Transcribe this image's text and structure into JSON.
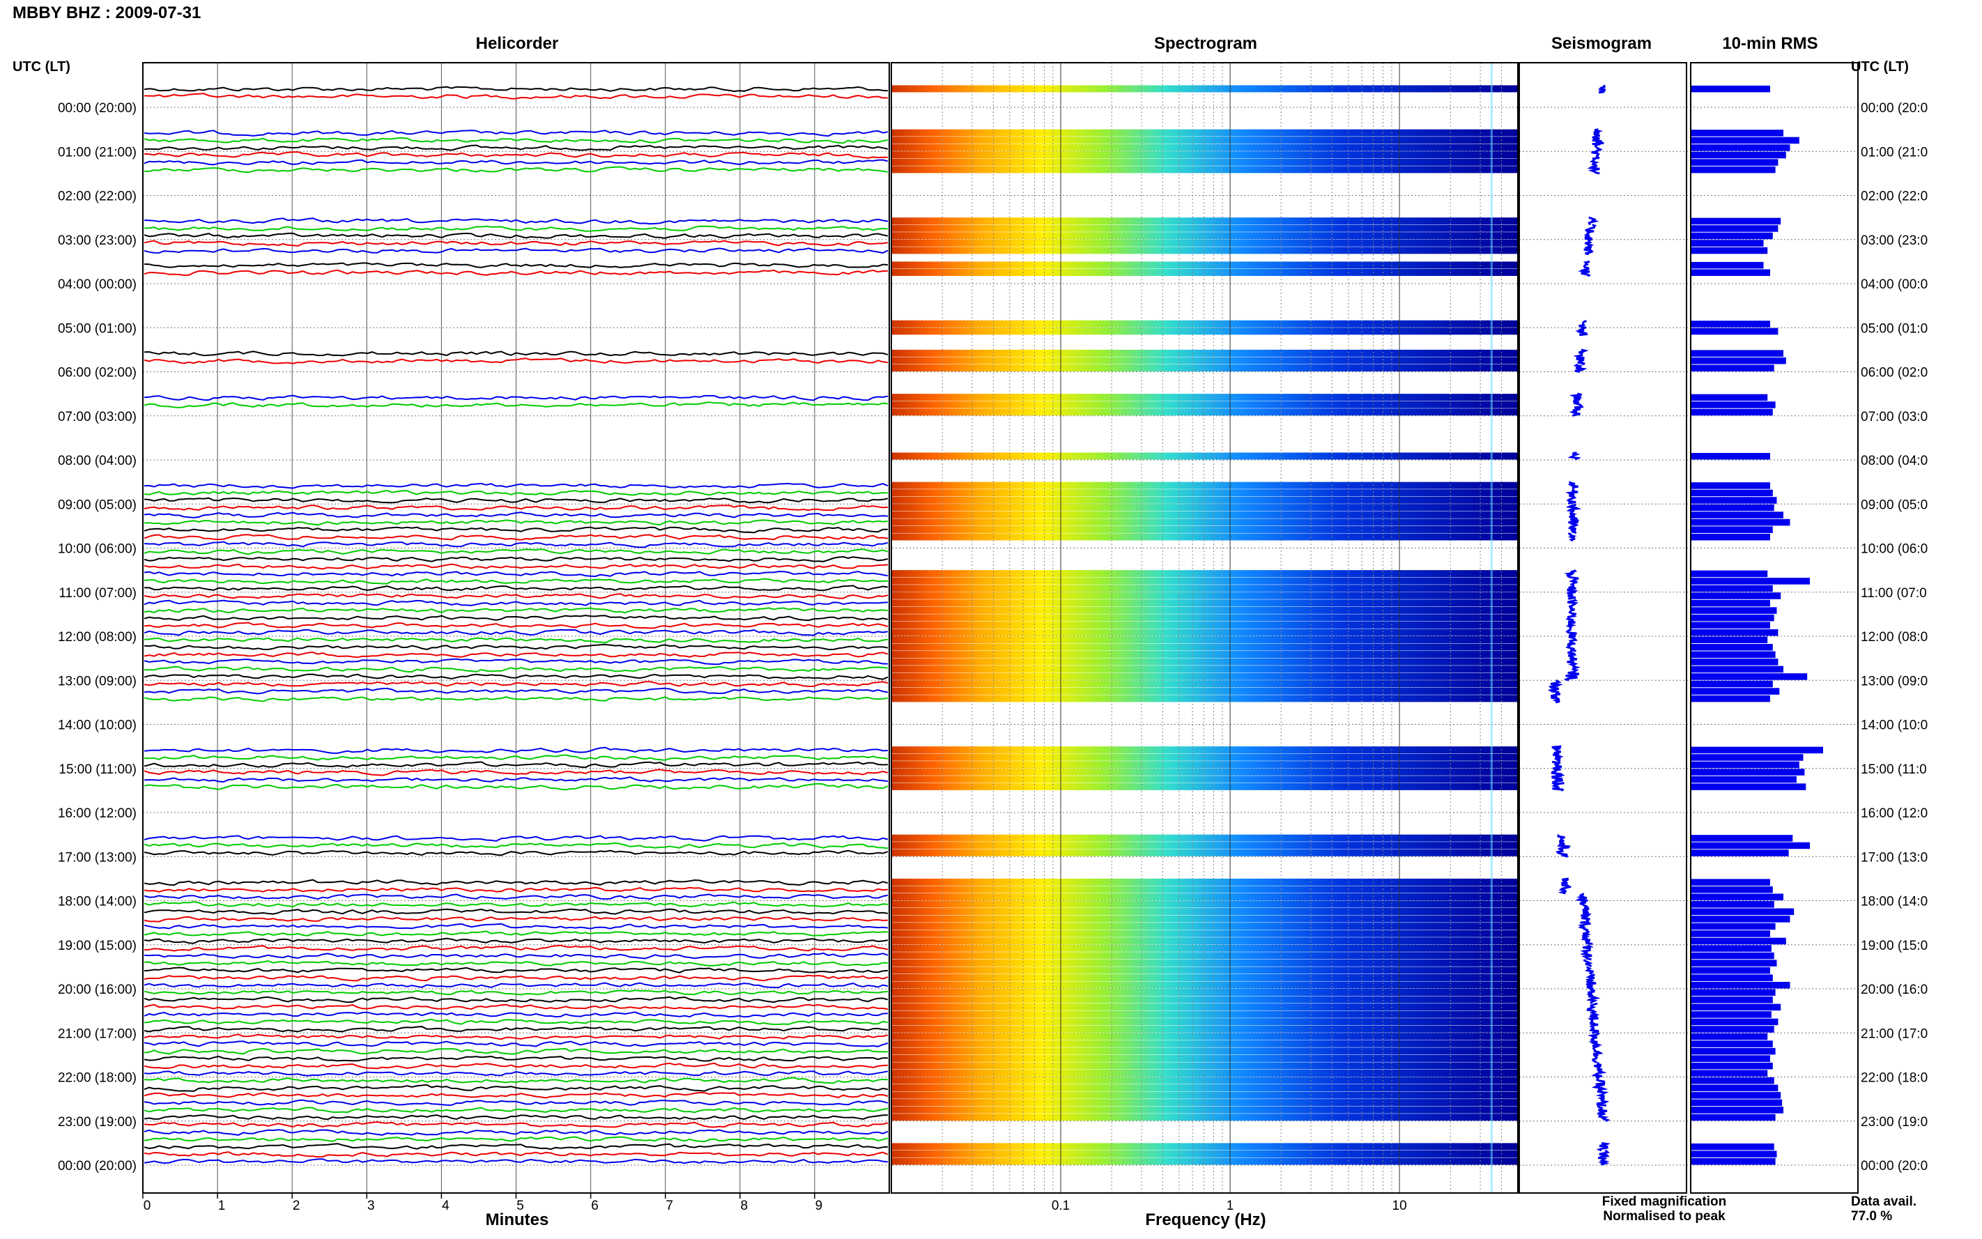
{
  "header": {
    "title": "MBBY BHZ : 2009-07-31",
    "utc_label": "UTC (LT)"
  },
  "panels": {
    "helicorder": "Helicorder",
    "spectrogram": "Spectrogram",
    "seismogram": "Seismogram",
    "rms": "10-min RMS"
  },
  "hour_labels_left": [
    "00:00 (20:00)",
    "01:00 (21:00)",
    "02:00 (22:00)",
    "03:00 (23:00)",
    "04:00 (00:00)",
    "05:00 (01:00)",
    "06:00 (02:00)",
    "07:00 (03:00)",
    "08:00 (04:00)",
    "09:00 (05:00)",
    "10:00 (06:00)",
    "11:00 (07:00)",
    "12:00 (08:00)",
    "13:00 (09:00)",
    "14:00 (10:00)",
    "15:00 (11:00)",
    "16:00 (12:00)",
    "17:00 (13:00)",
    "18:00 (14:00)",
    "19:00 (15:00)",
    "20:00 (16:00)",
    "21:00 (17:00)",
    "22:00 (18:00)",
    "23:00 (19:00)",
    "00:00 (20:00)"
  ],
  "hour_labels_right": [
    "00:00 (20:0",
    "01:00 (21:0",
    "02:00 (22:0",
    "03:00 (23:0",
    "04:00 (00:0",
    "05:00 (01:0",
    "06:00 (02:0",
    "07:00 (03:0",
    "08:00 (04:0",
    "09:00 (05:0",
    "10:00 (06:0",
    "11:00 (07:0",
    "12:00 (08:0",
    "13:00 (09:0",
    "14:00 (10:0",
    "15:00 (11:0",
    "16:00 (12:0",
    "17:00 (13:0",
    "18:00 (14:0",
    "19:00 (15:0",
    "20:00 (16:0",
    "21:00 (17:0",
    "22:00 (18:0",
    "23:00 (19:0",
    "00:00 (20:0"
  ],
  "footer": {
    "fixed_magnification": "Fixed magnification",
    "normalised_to_peak": "Normalised to peak",
    "data_avail_label": "Data avail.",
    "data_avail_value": "77.0 %",
    "colors": {
      "fixed": "#0000ee",
      "normalised": "#ee0000"
    }
  },
  "chart_data": [
    {
      "type": "line",
      "panel": "helicorder",
      "xlabel": "Minutes",
      "ylabel": "",
      "xlim": [
        0,
        10
      ],
      "xticks": [
        0,
        1,
        2,
        3,
        4,
        5,
        6,
        7,
        8,
        9
      ],
      "trace_colors": [
        "#000000",
        "#ee0000",
        "#0000ee",
        "#00cc00"
      ],
      "grid": true,
      "traces_per_hour": 6,
      "traces_by_hour": [
        2,
        6,
        0,
        5,
        2,
        0,
        2,
        2,
        0,
        6,
        6,
        6,
        6,
        6,
        0,
        6,
        0,
        3,
        6,
        6,
        6,
        6,
        6,
        6,
        3
      ]
    },
    {
      "type": "heatmap",
      "panel": "spectrogram",
      "xlabel": "Frequency (Hz)",
      "x_scale": "log",
      "xlim": [
        0.01,
        50
      ],
      "xtick_labels": [
        "0.1",
        "1",
        "10"
      ],
      "colormap": [
        "#cc3300",
        "#ff6600",
        "#ffaa00",
        "#ffee00",
        "#99ee33",
        "#33ddcc",
        "#1188ff",
        "#0033dd",
        "#000099"
      ],
      "grid": true
    },
    {
      "type": "line",
      "panel": "seismogram",
      "trace_color": "#0000ee"
    },
    {
      "type": "bar",
      "panel": "10-min RMS",
      "orientation": "horizontal",
      "bar_color": "#0000ee",
      "bins_per_hour": 6,
      "values": [
        0.6,
        0.0,
        0.0,
        0.0,
        0.0,
        0.0,
        0.7,
        0.82,
        0.75,
        0.72,
        0.66,
        0.64,
        0.0,
        0.0,
        0.0,
        0.0,
        0.0,
        0.0,
        0.68,
        0.66,
        0.62,
        0.55,
        0.58,
        0.0,
        0.55,
        0.6,
        0.0,
        0.0,
        0.0,
        0.0,
        0.0,
        0.0,
        0.6,
        0.66,
        0.0,
        0.0,
        0.7,
        0.72,
        0.63,
        0.0,
        0.0,
        0.0,
        0.58,
        0.64,
        0.62,
        0.0,
        0.0,
        0.0,
        0.0,
        0.0,
        0.6,
        0.0,
        0.0,
        0.0,
        0.6,
        0.62,
        0.65,
        0.63,
        0.7,
        0.75,
        0.62,
        0.6,
        0.0,
        0.0,
        0.0,
        0.0,
        0.58,
        0.9,
        0.62,
        0.68,
        0.6,
        0.65,
        0.63,
        0.6,
        0.66,
        0.58,
        0.62,
        0.64,
        0.66,
        0.7,
        0.88,
        0.62,
        0.67,
        0.6,
        0.0,
        0.0,
        0.0,
        0.0,
        0.0,
        0.0,
        1.0,
        0.85,
        0.82,
        0.86,
        0.8,
        0.87,
        0.0,
        0.0,
        0.0,
        0.0,
        0.0,
        0.0,
        0.77,
        0.9,
        0.74,
        0.0,
        0.0,
        0.0,
        0.6,
        0.62,
        0.7,
        0.63,
        0.78,
        0.75,
        0.64,
        0.6,
        0.72,
        0.61,
        0.63,
        0.65,
        0.6,
        0.62,
        0.75,
        0.64,
        0.62,
        0.68,
        0.61,
        0.66,
        0.63,
        0.58,
        0.62,
        0.64,
        0.6,
        0.62,
        0.58,
        0.63,
        0.66,
        0.68,
        0.69,
        0.7,
        0.64,
        0.0,
        0.0,
        0.0,
        0.63,
        0.65,
        0.64,
        0.0,
        0.0,
        0.0
      ]
    }
  ]
}
